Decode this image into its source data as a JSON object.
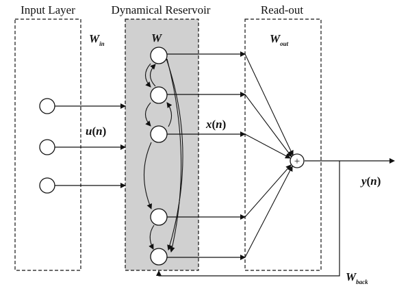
{
  "panels": {
    "input_title": "Input Layer",
    "reservoir_title": "Dynamical Reservoir",
    "readout_title": "Read-out"
  },
  "weights": {
    "w_in_main": "W",
    "w_in_sub": "in",
    "w_res": "W",
    "w_out_main": "W",
    "w_out_sub": "out",
    "w_back_main": "W",
    "w_back_sub": "back"
  },
  "signals": {
    "u_main": "u",
    "u_arg": "n",
    "x_main": "x",
    "x_arg": "n",
    "y_main": "y",
    "y_arg": "n",
    "paren_open": "(",
    "paren_close": ")"
  },
  "summation_symbol": "+",
  "colors": {
    "reservoir_fill": "#d0d0d0",
    "line": "#111111",
    "node_fill": "#ffffff"
  }
}
